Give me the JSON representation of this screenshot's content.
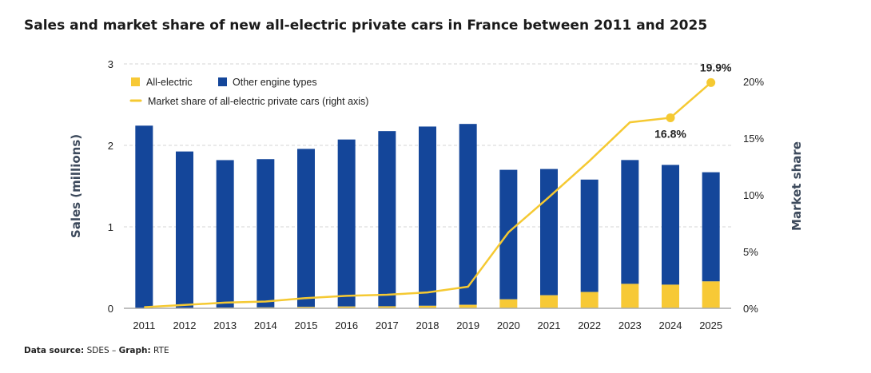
{
  "title": "Sales and market share of new all-electric private cars in France between 2011 and 2025",
  "source": {
    "label": "Data source:",
    "value": "SDES",
    "sep": " – ",
    "graph_label": "Graph:",
    "graph_value": "RTE"
  },
  "colors": {
    "electric": "#F7C936",
    "other": "#14469A",
    "line": "#F5C932",
    "axis_title": "#3d4a5c"
  },
  "chart_data": {
    "type": "bar",
    "stacked": true,
    "title": "Sales and market share of new all-electric private cars in France between 2011 and 2025",
    "ylabel": "Sales (millions)",
    "ylabel_right": "Market share",
    "ylim": [
      0,
      3
    ],
    "ylim_right": [
      0,
      21.5
    ],
    "yticks": [
      "0",
      "1",
      "2",
      "3"
    ],
    "yticks_right": [
      "0%",
      "5%",
      "10%",
      "15%",
      "20%"
    ],
    "categories": [
      "2011",
      "2012",
      "2013",
      "2014",
      "2015",
      "2016",
      "2017",
      "2018",
      "2019",
      "2020",
      "2021",
      "2022",
      "2023",
      "2024",
      "2025"
    ],
    "series": [
      {
        "name": "All-electric",
        "values": [
          0.002,
          0.005,
          0.009,
          0.011,
          0.017,
          0.022,
          0.025,
          0.031,
          0.043,
          0.11,
          0.16,
          0.2,
          0.3,
          0.29,
          0.33
        ]
      },
      {
        "name": "Other engine types",
        "values": [
          2.24,
          1.92,
          1.81,
          1.82,
          1.94,
          2.05,
          2.15,
          2.2,
          2.22,
          1.59,
          1.55,
          1.38,
          1.52,
          1.47,
          1.34
        ]
      }
    ],
    "line": {
      "name": "Market share of all-electric private cars (right axis)",
      "values": [
        0.1,
        0.3,
        0.5,
        0.6,
        0.9,
        1.1,
        1.2,
        1.4,
        1.9,
        6.7,
        9.8,
        13.0,
        16.4,
        16.8,
        19.9
      ]
    },
    "annotations": [
      {
        "index": 13,
        "text": "16.8%"
      },
      {
        "index": 14,
        "text": "19.9%"
      }
    ],
    "legend_position": "top-left",
    "grid": true
  }
}
